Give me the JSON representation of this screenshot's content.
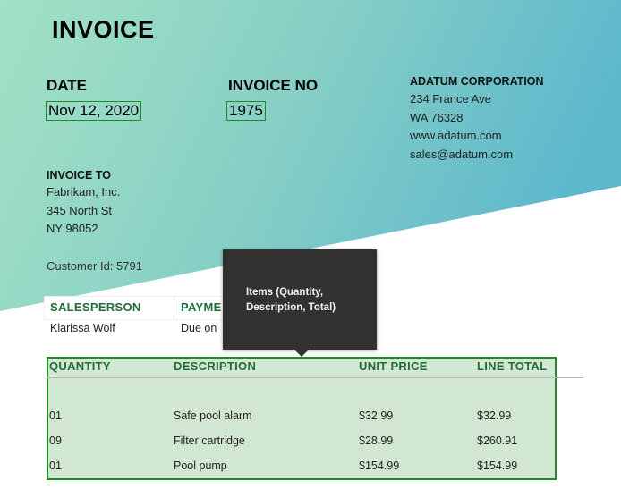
{
  "title": "INVOICE",
  "date": {
    "label": "DATE",
    "value": "Nov 12, 2020"
  },
  "invoice_no": {
    "label": "INVOICE NO",
    "value": "1975"
  },
  "company": {
    "name": "ADATUM CORPORATION",
    "lines": [
      "234 France Ave",
      "WA 76328",
      "www.adatum.com",
      "sales@adatum.com"
    ]
  },
  "invoice_to": {
    "label": "INVOICE TO",
    "lines": [
      "Fabrikam, Inc.",
      "345 North St",
      "NY 98052"
    ]
  },
  "customer_id": "Customer Id: 5791",
  "sales": {
    "headers": [
      "SALESPERSON",
      "PAYME"
    ],
    "values": [
      "Klarissa Wolf",
      "Due on"
    ]
  },
  "tooltip": "Items (Quantity, Description, Total)",
  "items": {
    "headers": [
      "QUANTITY",
      "DESCRIPTION",
      "UNIT PRICE",
      "LINE TOTAL"
    ],
    "rows": [
      [
        "01",
        "Safe pool alarm",
        "$32.99",
        "$32.99"
      ],
      [
        "09",
        "Filter cartridge",
        "$28.99",
        "$260.91"
      ],
      [
        "01",
        "Pool pump",
        "$154.99",
        "$154.99"
      ]
    ]
  },
  "colors": {
    "accent": "#1f6b3a",
    "selection": "#1e8a2a",
    "gradient_start": "#a3e1c5",
    "gradient_end": "#4fb2cc"
  }
}
